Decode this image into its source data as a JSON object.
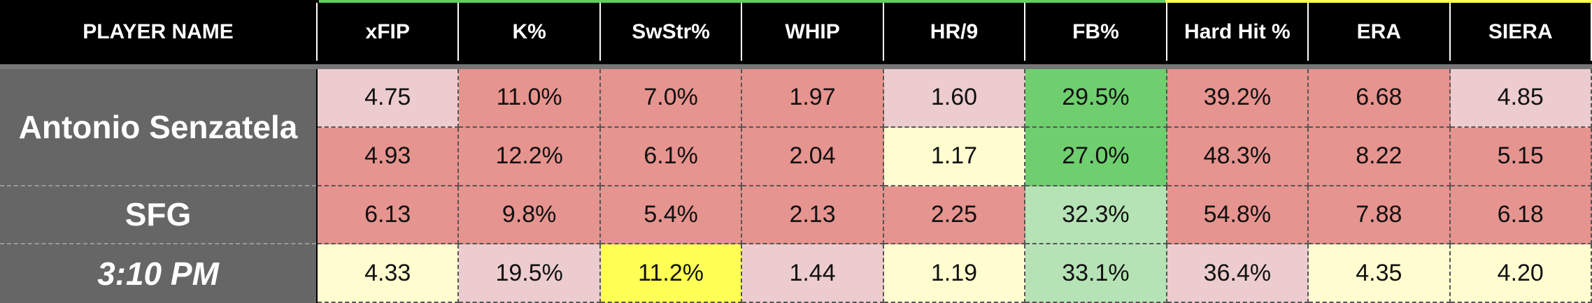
{
  "header": {
    "columns": [
      "PLAYER NAME",
      "xFIP",
      "K%",
      "SwStr%",
      "WHIP",
      "HR/9",
      "FB%",
      "Hard Hit %",
      "ERA",
      "SIERA"
    ]
  },
  "player": {
    "name": "Antonio Senzatela",
    "team": "SFG",
    "time": "3:10 PM"
  },
  "table": {
    "rows": [
      [
        "4.75",
        "11.0%",
        "7.0%",
        "1.97",
        "1.60",
        "29.5%",
        "39.2%",
        "6.68",
        "4.85"
      ],
      [
        "4.93",
        "12.2%",
        "6.1%",
        "2.04",
        "1.17",
        "27.0%",
        "48.3%",
        "8.22",
        "5.15"
      ],
      [
        "6.13",
        "9.8%",
        "5.4%",
        "2.13",
        "2.25",
        "32.3%",
        "54.8%",
        "7.88",
        "6.18"
      ],
      [
        "4.33",
        "19.5%",
        "11.2%",
        "1.44",
        "1.19",
        "33.1%",
        "36.4%",
        "4.35",
        "4.20"
      ]
    ],
    "cell_colors": [
      [
        "#ecccce",
        "#e6948f",
        "#e6948f",
        "#e6948f",
        "#ecccce",
        "#6fcf6f",
        "#e6948f",
        "#e6948f",
        "#ecccce"
      ],
      [
        "#e6948f",
        "#e6948f",
        "#e6948f",
        "#e6948f",
        "#fffdd0",
        "#6fcf6f",
        "#e6948f",
        "#e6948f",
        "#e6948f"
      ],
      [
        "#e6948f",
        "#e6948f",
        "#e6948f",
        "#e6948f",
        "#e6948f",
        "#b5e3b5",
        "#e6948f",
        "#e6948f",
        "#e6948f"
      ],
      [
        "#fffdd0",
        "#ecccce",
        "#ffff55",
        "#ecccce",
        "#fffdd0",
        "#b5e3b5",
        "#ecccce",
        "#fffdd0",
        "#fffdd0"
      ]
    ]
  }
}
